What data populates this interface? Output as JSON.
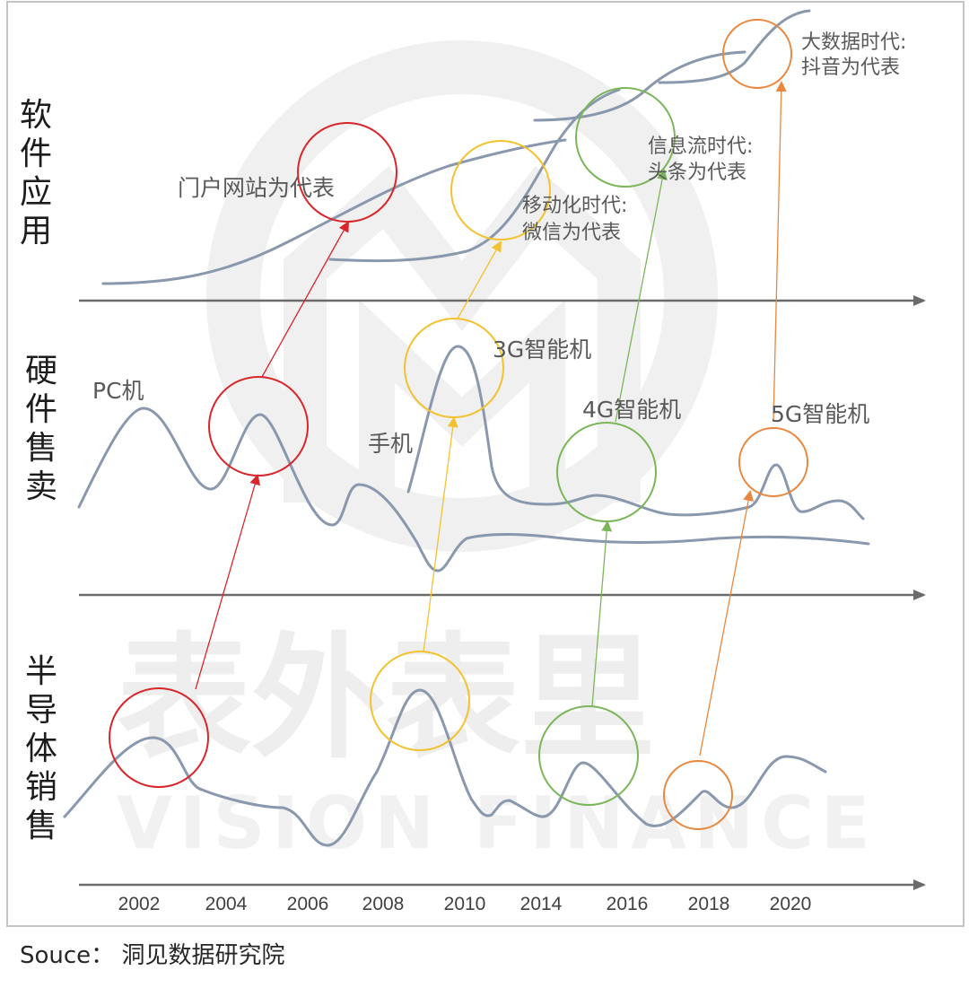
{
  "watermark": {
    "chinese": "表外表里",
    "english": "VISION FINANCE"
  },
  "row_labels": {
    "software": [
      "软",
      "件",
      "应",
      "用"
    ],
    "hardware": [
      "硬",
      "件",
      "售",
      "卖"
    ],
    "semiconductor": [
      "半",
      "导",
      "体",
      "销",
      "售"
    ]
  },
  "annotations": {
    "portal": "门户网站为代表",
    "mobile_line1": "移动化时代:",
    "mobile_line2": "微信为代表",
    "feed_line1": "信息流时代:",
    "feed_line2": "头条为代表",
    "bigdata_line1": "大数据时代:",
    "bigdata_line2": "抖音为代表",
    "pc": "PC机",
    "phone": "手机",
    "g3": "3G智能机",
    "g4": "4G智能机",
    "g5": "5G智能机"
  },
  "years": [
    "2002",
    "2004",
    "2006",
    "2008",
    "2010",
    "2014",
    "2016",
    "2018",
    "2020"
  ],
  "colors": {
    "red": "#d9262c",
    "yellow": "#f2c230",
    "green": "#7cb65a",
    "orange": "#e8873d",
    "curve": "#8a98ad",
    "axis": "#6b6b6b"
  },
  "source": "Souce：  洞见数据研究院"
}
